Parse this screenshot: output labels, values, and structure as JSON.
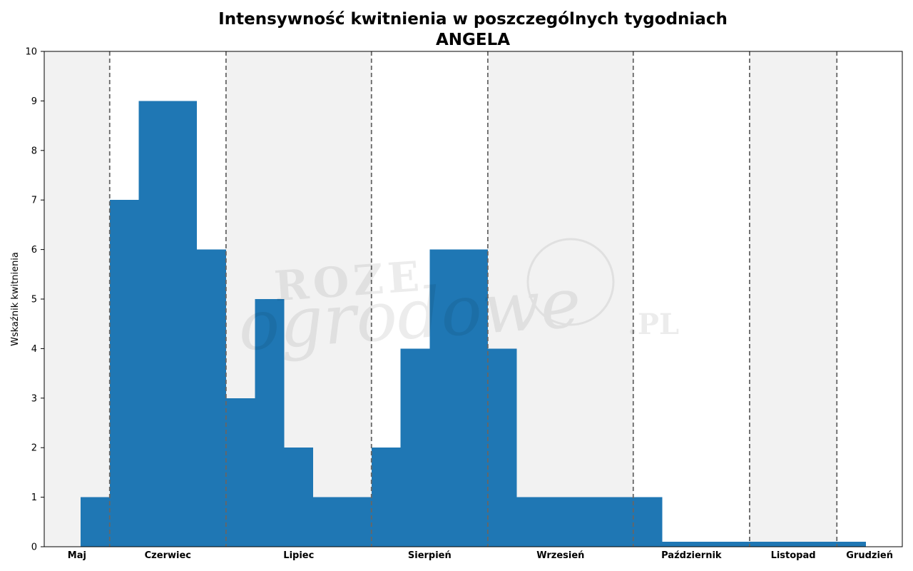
{
  "chart_data": {
    "type": "bar",
    "title": "Intensywność kwitnienia w poszczególnych tygodniach",
    "subtitle": "ANGELA",
    "xlabel": "",
    "ylabel": "Wskaźnik kwitnienia",
    "ylim": [
      0,
      10
    ],
    "yticks": [
      "0",
      "1",
      "2",
      "3",
      "4",
      "5",
      "6",
      "7",
      "8",
      "9",
      "10"
    ],
    "grid": false,
    "x_week_range": [
      0,
      29.5
    ],
    "bars": [
      {
        "week_start": 1.25,
        "week_end": 2.25,
        "value": 1
      },
      {
        "week_start": 2.25,
        "week_end": 3.25,
        "value": 7
      },
      {
        "week_start": 3.25,
        "week_end": 4.25,
        "value": 9
      },
      {
        "week_start": 4.25,
        "week_end": 5.25,
        "value": 9
      },
      {
        "week_start": 5.25,
        "week_end": 6.25,
        "value": 6
      },
      {
        "week_start": 6.25,
        "week_end": 7.25,
        "value": 3
      },
      {
        "week_start": 7.25,
        "week_end": 8.25,
        "value": 5
      },
      {
        "week_start": 8.25,
        "week_end": 9.25,
        "value": 2
      },
      {
        "week_start": 9.25,
        "week_end": 10.25,
        "value": 1
      },
      {
        "week_start": 10.25,
        "week_end": 11.25,
        "value": 1
      },
      {
        "week_start": 11.25,
        "week_end": 12.25,
        "value": 2
      },
      {
        "week_start": 12.25,
        "week_end": 13.25,
        "value": 4
      },
      {
        "week_start": 13.25,
        "week_end": 14.25,
        "value": 6
      },
      {
        "week_start": 14.25,
        "week_end": 15.25,
        "value": 6
      },
      {
        "week_start": 15.25,
        "week_end": 16.25,
        "value": 4
      },
      {
        "week_start": 16.25,
        "week_end": 17.25,
        "value": 1
      },
      {
        "week_start": 17.25,
        "week_end": 18.25,
        "value": 1
      },
      {
        "week_start": 18.25,
        "week_end": 19.25,
        "value": 1
      },
      {
        "week_start": 19.25,
        "week_end": 20.25,
        "value": 1
      },
      {
        "week_start": 20.25,
        "week_end": 21.25,
        "value": 1
      },
      {
        "week_start": 21.25,
        "week_end": 22.25,
        "value": 0.1
      },
      {
        "week_start": 22.25,
        "week_end": 23.25,
        "value": 0.1
      },
      {
        "week_start": 23.25,
        "week_end": 24.25,
        "value": 0.1
      },
      {
        "week_start": 24.25,
        "week_end": 25.25,
        "value": 0.1
      },
      {
        "week_start": 25.25,
        "week_end": 26.25,
        "value": 0.1
      },
      {
        "week_start": 26.25,
        "week_end": 27.25,
        "value": 0.1
      },
      {
        "week_start": 27.25,
        "week_end": 28.25,
        "value": 0.1
      }
    ],
    "months": [
      {
        "name": "Maj",
        "start": 0,
        "end": 2.25,
        "shaded": true
      },
      {
        "name": "Czerwiec",
        "start": 2.25,
        "end": 6.25,
        "shaded": false
      },
      {
        "name": "Lipiec",
        "start": 6.25,
        "end": 11.25,
        "shaded": true
      },
      {
        "name": "Sierpień",
        "start": 11.25,
        "end": 15.25,
        "shaded": false
      },
      {
        "name": "Wrzesień",
        "start": 15.25,
        "end": 20.25,
        "shaded": true
      },
      {
        "name": "Październik",
        "start": 20.25,
        "end": 24.25,
        "shaded": false
      },
      {
        "name": "Listopad",
        "start": 24.25,
        "end": 27.25,
        "shaded": true
      },
      {
        "name": "Grudzień",
        "start": 27.25,
        "end": 29.5,
        "shaded": false
      }
    ],
    "month_boundaries": [
      2.25,
      6.25,
      11.25,
      15.25,
      20.25,
      24.25,
      27.25
    ],
    "colors": {
      "bar": "#1f77b4",
      "shade": "#f2f2f2",
      "divider": "#666666",
      "axis": "#000000"
    }
  },
  "watermark": {
    "line1": "ROZE",
    "line2": "ogrodowe",
    "suffix": ".PL"
  }
}
